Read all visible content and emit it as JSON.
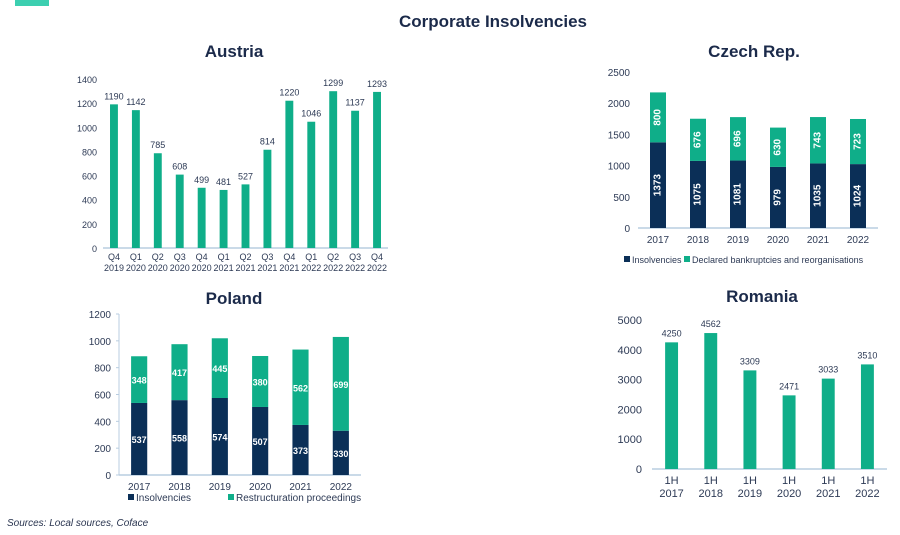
{
  "page": {
    "title": "Corporate Insolvencies",
    "source": "Sources: Local sources, Coface"
  },
  "colors": {
    "teal": "#0fae89",
    "navy": "#0b2f57",
    "title": "#1b2a4a",
    "axis_text": "#2d3a55",
    "axis_line": "#b9cde0"
  },
  "chart_data": [
    {
      "id": "austria",
      "type": "bar",
      "title": "Austria",
      "categories": [
        "Q4 2019",
        "Q1 2020",
        "Q2 2020",
        "Q3 2020",
        "Q4 2020",
        "Q1 2021",
        "Q2 2021",
        "Q3 2021",
        "Q4 2021",
        "Q1 2022",
        "Q2 2022",
        "Q3 2022",
        "Q4 2022"
      ],
      "category_lines": [
        [
          "Q4",
          "2019"
        ],
        [
          "Q1",
          "2020"
        ],
        [
          "Q2",
          "2020"
        ],
        [
          "Q3",
          "2020"
        ],
        [
          "Q4",
          "2020"
        ],
        [
          "Q1",
          "2021"
        ],
        [
          "Q2",
          "2021"
        ],
        [
          "Q3",
          "2021"
        ],
        [
          "Q4",
          "2021"
        ],
        [
          "Q1",
          "2022"
        ],
        [
          "Q2",
          "2022"
        ],
        [
          "Q3",
          "2022"
        ],
        [
          "Q4",
          "2022"
        ]
      ],
      "values": [
        1190,
        1142,
        785,
        608,
        499,
        481,
        527,
        814,
        1220,
        1046,
        1299,
        1137,
        1293
      ],
      "ylim": [
        0,
        1400
      ],
      "yticks": [
        0,
        200,
        400,
        600,
        800,
        1000,
        1200,
        1400
      ],
      "xlabel": "",
      "ylabel": "",
      "grid": false,
      "data_labels": "above"
    },
    {
      "id": "czech",
      "type": "bar",
      "stacked": true,
      "title": "Czech Rep.",
      "categories": [
        "2017",
        "2018",
        "2019",
        "2020",
        "2021",
        "2022"
      ],
      "series": [
        {
          "name": "Insolvencies",
          "color": "#0b2f57",
          "values": [
            1373,
            1075,
            1081,
            979,
            1035,
            1024
          ]
        },
        {
          "name": "Declared bankruptcies and reorganisations",
          "color": "#0fae89",
          "values": [
            800,
            676,
            696,
            630,
            743,
            723
          ]
        }
      ],
      "ylim": [
        0,
        2500
      ],
      "yticks": [
        0,
        500,
        1000,
        1500,
        2000,
        2500
      ],
      "grid": false,
      "legend": "bottom",
      "data_labels": "inside-rotated"
    },
    {
      "id": "poland",
      "type": "bar",
      "stacked": true,
      "title": "Poland",
      "categories": [
        "2017",
        "2018",
        "2019",
        "2020",
        "2021",
        "2022"
      ],
      "series": [
        {
          "name": "Insolvencies",
          "color": "#0b2f57",
          "values": [
            537,
            558,
            574,
            507,
            373,
            330
          ]
        },
        {
          "name": "Restructuration proceedings",
          "color": "#0fae89",
          "values": [
            348,
            417,
            445,
            380,
            562,
            699
          ]
        }
      ],
      "ylim": [
        0,
        1200
      ],
      "yticks": [
        0,
        200,
        400,
        600,
        800,
        1000,
        1200
      ],
      "grid": false,
      "legend": "bottom",
      "data_labels": "inside"
    },
    {
      "id": "romania",
      "type": "bar",
      "title": "Romania",
      "categories": [
        "1H 2017",
        "1H 2018",
        "1H 2019",
        "1H 2020",
        "1H 2021",
        "1H 2022"
      ],
      "category_lines": [
        [
          "1H",
          "2017"
        ],
        [
          "1H",
          "2018"
        ],
        [
          "1H",
          "2019"
        ],
        [
          "1H",
          "2020"
        ],
        [
          "1H",
          "2021"
        ],
        [
          "1H",
          "2022"
        ]
      ],
      "values": [
        4250,
        4562,
        3309,
        2471,
        3033,
        3510
      ],
      "ylim": [
        0,
        5000
      ],
      "yticks": [
        0,
        1000,
        2000,
        3000,
        4000,
        5000
      ],
      "grid": false,
      "data_labels": "above"
    }
  ]
}
